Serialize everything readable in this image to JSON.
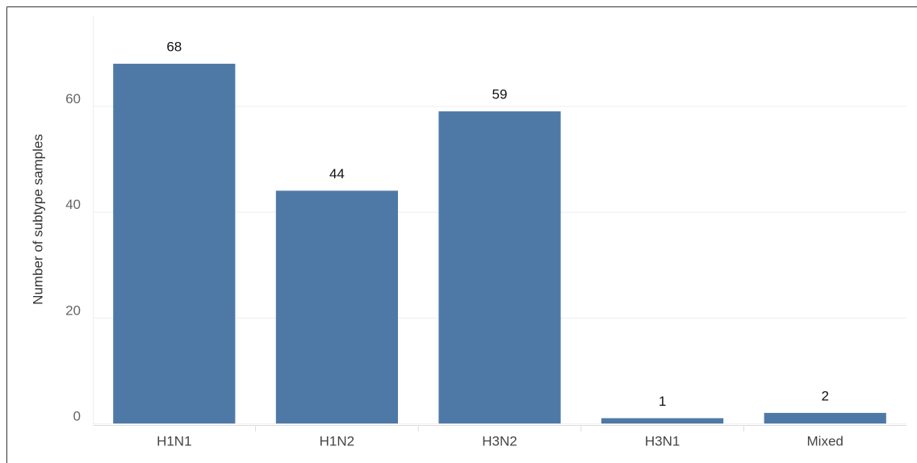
{
  "chart_data": {
    "type": "bar",
    "y_label": "Number of subtype samples",
    "categories": [
      "H1N1",
      "H1N2",
      "H3N2",
      "H3N1",
      "Mixed"
    ],
    "values": [
      68,
      44,
      59,
      1,
      2
    ],
    "color": "#4e79a7",
    "ylim": [
      0,
      77
    ],
    "yticks": [
      0,
      20,
      40,
      60
    ],
    "grid": true
  }
}
